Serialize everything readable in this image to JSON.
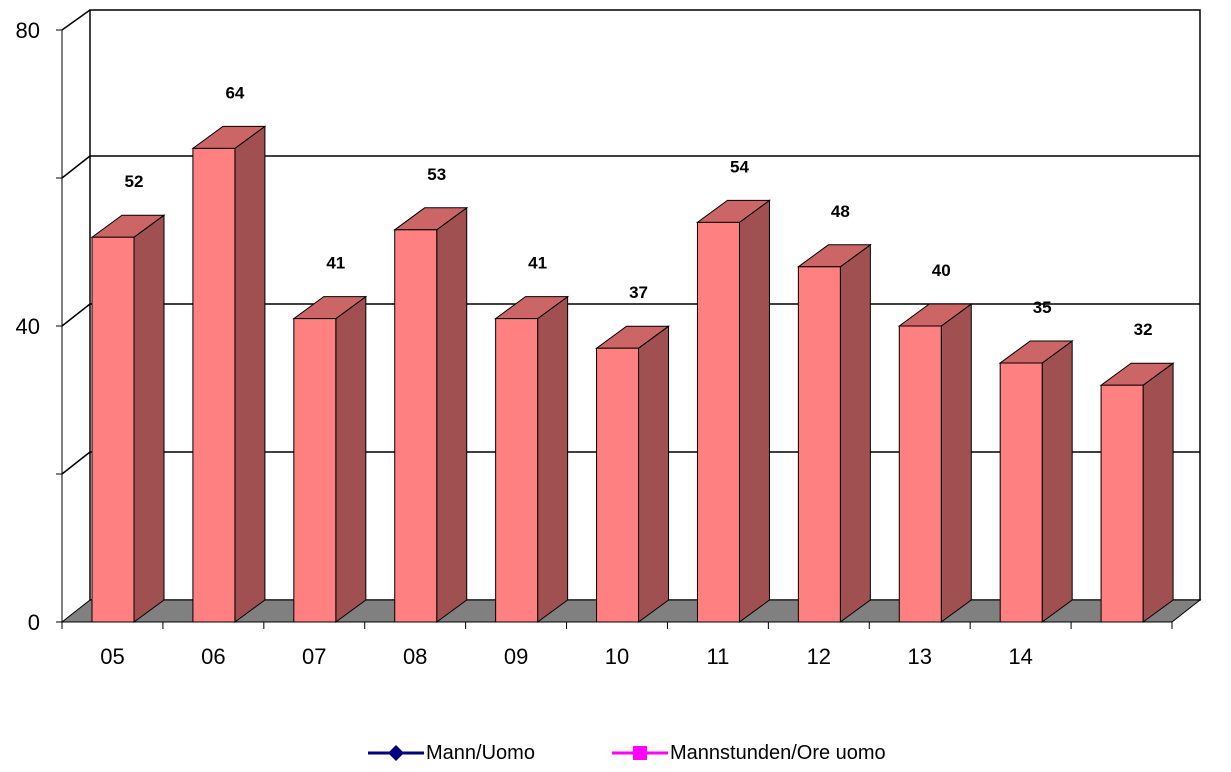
{
  "chart_data": {
    "type": "bar",
    "categories": [
      "05",
      "06",
      "07",
      "08",
      "09",
      "10",
      "11",
      "12",
      "13",
      "14",
      ""
    ],
    "values": [
      52,
      64,
      41,
      53,
      41,
      37,
      54,
      48,
      40,
      35,
      32
    ],
    "data_labels": [
      "52",
      "64",
      "41",
      "53",
      "41",
      "37",
      "54",
      "48",
      "40",
      "35",
      "32"
    ],
    "y_tick_labels": [
      "0",
      "40",
      "80"
    ],
    "ylim": [
      0,
      80
    ],
    "grid": true,
    "three_d": true,
    "legend_placement": "bottom",
    "legend": [
      {
        "name": "Mann/Uomo",
        "color": "#000080",
        "marker": "diamond"
      },
      {
        "name": "Mannstunden/Ore uomo",
        "color": "#ff00ff",
        "marker": "square"
      }
    ],
    "colors": {
      "bar_front": "#ff8080",
      "bar_side": "#a05050",
      "bar_top": "#cc6666",
      "floor": "#808080"
    }
  }
}
